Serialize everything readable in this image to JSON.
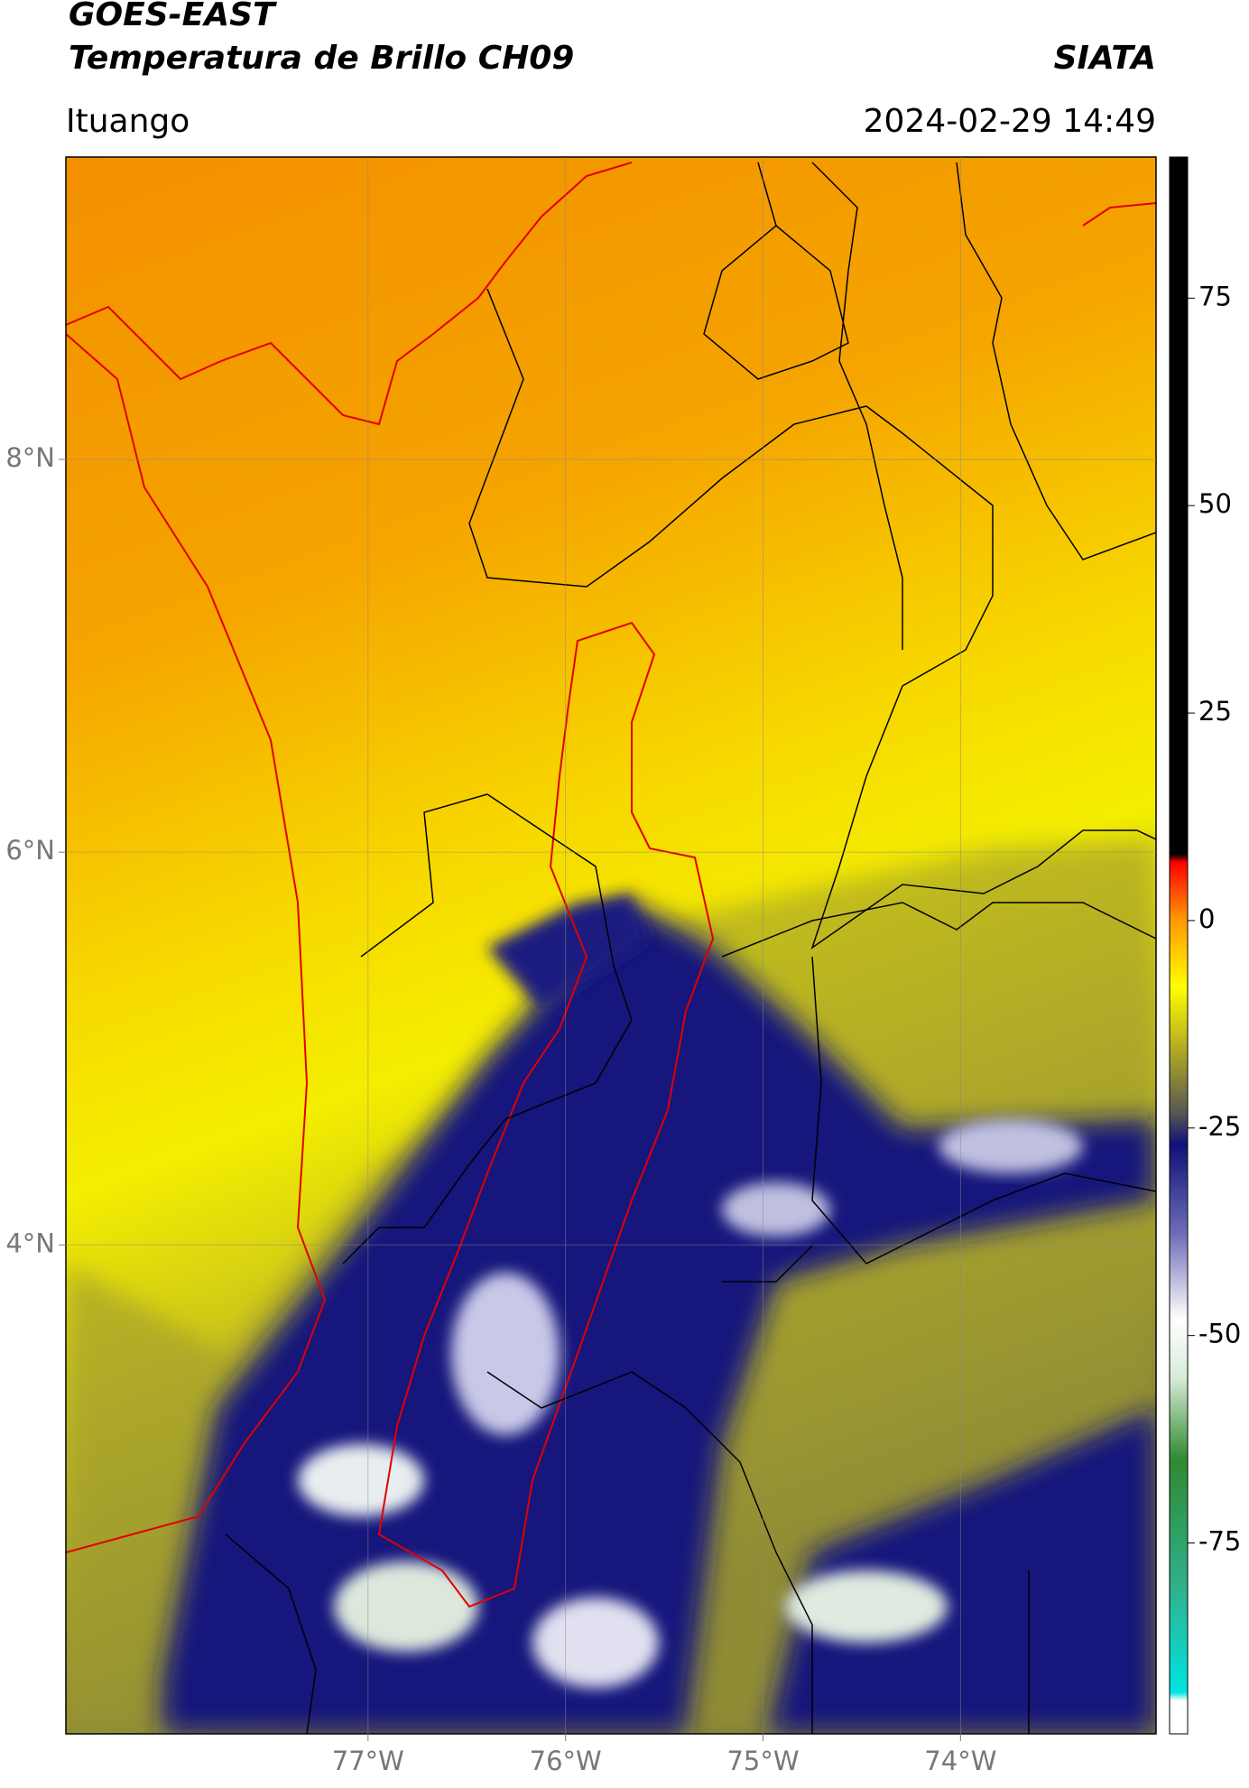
{
  "chart_data": {
    "type": "map",
    "title": "GOES-EAST",
    "subtitle": "Temperatura de Brillo CH09",
    "source": "SIATA",
    "region": "Ituango",
    "timestamp": "2024-02-29 14:49",
    "xlim": [
      -78.53,
      -73.01
    ],
    "ylim": [
      1.51,
      9.54
    ],
    "xticks": [
      {
        "value": -77,
        "label": "77°W"
      },
      {
        "value": -76,
        "label": "76°W"
      },
      {
        "value": -75,
        "label": "75°W"
      },
      {
        "value": -74,
        "label": "74°W"
      }
    ],
    "yticks": [
      {
        "value": 8,
        "label": "8°N"
      },
      {
        "value": 6,
        "label": "6°N"
      },
      {
        "value": 4,
        "label": "4°N"
      }
    ],
    "grid": true,
    "colorbar": {
      "clim": [
        -98,
        92
      ],
      "ticks": [
        75,
        50,
        25,
        0,
        -25,
        -50,
        -75
      ],
      "colormap": [
        {
          "value": -98,
          "color": "#ffffff"
        },
        {
          "value": -94,
          "color": "#ffffff"
        },
        {
          "value": -93,
          "color": "#00e5e0"
        },
        {
          "value": -80,
          "color": "#2fb08a"
        },
        {
          "value": -65,
          "color": "#2f8a30"
        },
        {
          "value": -55,
          "color": "#d8ecd8"
        },
        {
          "value": -48,
          "color": "#ffffff"
        },
        {
          "value": -38,
          "color": "#7070b8"
        },
        {
          "value": -27,
          "color": "#10107a"
        },
        {
          "value": -23,
          "color": "#5a5a50"
        },
        {
          "value": -15,
          "color": "#b8b020"
        },
        {
          "value": -8,
          "color": "#ffff00"
        },
        {
          "value": 0,
          "color": "#ff9a00"
        },
        {
          "value": 7,
          "color": "#ff0000"
        },
        {
          "value": 8,
          "color": "#000000"
        },
        {
          "value": 92,
          "color": "#000000"
        }
      ]
    }
  }
}
